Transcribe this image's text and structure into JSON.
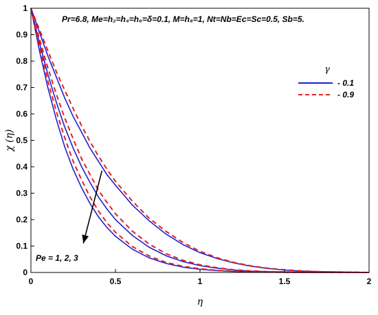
{
  "chart_data": {
    "type": "line",
    "title": "",
    "xlabel": "η",
    "ylabel": "χ (η)",
    "xlim": [
      0,
      2
    ],
    "ylim": [
      0,
      1
    ],
    "xticks": [
      "0",
      "0.5",
      "1",
      "1.5",
      "2"
    ],
    "yticks": [
      "0",
      "0.1",
      "0.2",
      "0.3",
      "0.4",
      "0.5",
      "0.6",
      "0.7",
      "0.8",
      "0.9",
      "1"
    ],
    "grid": false,
    "legend_position": "top-right",
    "legend_title": "γ",
    "parameters_text": "Pr=6.8, Me=h₂=h₄=h₆=δ=0.1, M=h₈=1, Nt=Nb=Ec=Sc=0.5, Sb=5.",
    "annotation_text": "Pe = 1, 2, 3",
    "colors": {
      "solid": "#1f1fcf",
      "dashed": "#e02020",
      "arrow": "#000000"
    },
    "x": [
      0,
      0.05,
      0.1,
      0.15,
      0.2,
      0.25,
      0.3,
      0.35,
      0.4,
      0.45,
      0.5,
      0.6,
      0.7,
      0.8,
      0.9,
      1.0,
      1.1,
      1.2,
      1.3,
      1.4,
      1.5,
      1.6,
      1.7,
      1.8,
      1.9,
      2.0
    ],
    "series": [
      {
        "name": "- 0.1",
        "style": "solid",
        "group": "Pe = 1",
        "values": [
          1,
          0.91,
          0.82,
          0.74,
          0.66,
          0.59,
          0.53,
          0.47,
          0.42,
          0.37,
          0.33,
          0.255,
          0.195,
          0.145,
          0.105,
          0.075,
          0.053,
          0.036,
          0.024,
          0.015,
          0.009,
          0.005,
          0.003,
          0.002,
          0.001,
          0
        ]
      },
      {
        "name": "- 0.9",
        "style": "dashed",
        "group": "Pe = 1",
        "values": [
          1,
          0.92,
          0.84,
          0.76,
          0.69,
          0.62,
          0.555,
          0.495,
          0.44,
          0.39,
          0.345,
          0.27,
          0.205,
          0.155,
          0.113,
          0.08,
          0.056,
          0.038,
          0.025,
          0.016,
          0.01,
          0.006,
          0.003,
          0.002,
          0.001,
          0
        ]
      },
      {
        "style": "solid",
        "group": "Pe = 2",
        "values": [
          1,
          0.87,
          0.75,
          0.645,
          0.55,
          0.47,
          0.4,
          0.34,
          0.285,
          0.24,
          0.2,
          0.14,
          0.095,
          0.063,
          0.041,
          0.026,
          0.016,
          0.009,
          0.005,
          0.003,
          0.002,
          0.001,
          0.0005,
          0,
          0,
          0
        ]
      },
      {
        "style": "dashed",
        "group": "Pe = 2",
        "values": [
          1,
          0.885,
          0.775,
          0.675,
          0.585,
          0.505,
          0.43,
          0.37,
          0.31,
          0.265,
          0.222,
          0.156,
          0.107,
          0.071,
          0.046,
          0.029,
          0.018,
          0.01,
          0.006,
          0.003,
          0.002,
          0.001,
          0.0005,
          0,
          0,
          0
        ]
      },
      {
        "style": "solid",
        "group": "Pe = 3",
        "values": [
          1,
          0.84,
          0.7,
          0.58,
          0.475,
          0.39,
          0.32,
          0.26,
          0.21,
          0.17,
          0.137,
          0.088,
          0.055,
          0.034,
          0.02,
          0.012,
          0.007,
          0.004,
          0.002,
          0.001,
          0.0005,
          0,
          0,
          0,
          0,
          0
        ]
      },
      {
        "style": "dashed",
        "group": "Pe = 3",
        "values": [
          1,
          0.855,
          0.725,
          0.61,
          0.51,
          0.42,
          0.35,
          0.285,
          0.232,
          0.188,
          0.152,
          0.098,
          0.062,
          0.038,
          0.023,
          0.014,
          0.008,
          0.004,
          0.002,
          0.001,
          0.0005,
          0,
          0,
          0,
          0,
          0
        ]
      }
    ]
  }
}
